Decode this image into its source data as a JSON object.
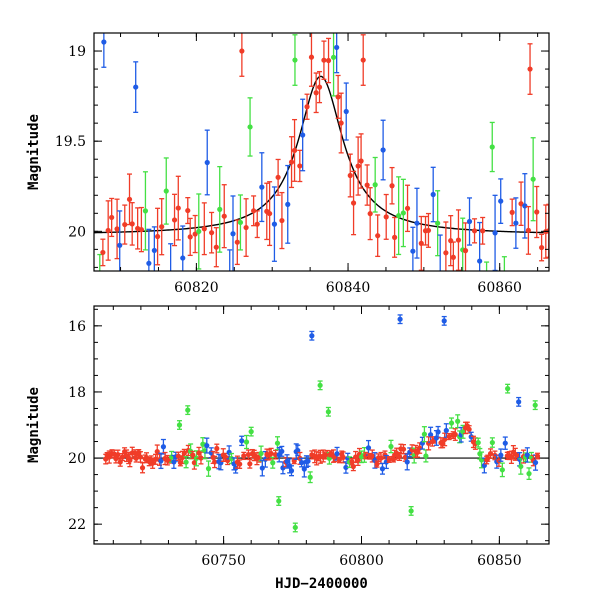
{
  "colors": {
    "blue": "#1f5ce6",
    "green": "#44e044",
    "red": "#f03c28",
    "model": "#000000"
  },
  "chart_data": [
    {
      "type": "scatter",
      "title": "",
      "xlabel": "",
      "ylabel": "Magnitude",
      "xlim": [
        60806.5,
        60866.5
      ],
      "ylim": [
        20.22,
        18.9
      ],
      "y_inverted": true,
      "xticks": [
        60820,
        60840,
        60860
      ],
      "xtick_labels": [
        "60820",
        "60840",
        "60860"
      ],
      "yticks": [
        19,
        19.5,
        20
      ],
      "ytick_labels": [
        "19",
        "19.5",
        "20"
      ],
      "model_curve": {
        "type": "lorentzian",
        "baseline": 20.02,
        "peak_x": 60836.4,
        "peak_y": 19.14,
        "half_width": 3.6
      },
      "grid": false,
      "legend": "none"
    },
    {
      "type": "scatter",
      "title": "",
      "xlabel": "HJD−2400000",
      "ylabel": "Magnitude",
      "xlim": [
        60703,
        60868
      ],
      "ylim": [
        22.6,
        15.4
      ],
      "y_inverted": true,
      "xticks": [
        60750,
        60800,
        60850
      ],
      "xtick_labels": [
        "60750",
        "60800",
        "60850"
      ],
      "yticks": [
        16,
        18,
        20,
        22
      ],
      "ytick_labels": [
        "16",
        "18",
        "20",
        "22"
      ],
      "baseline": 20.0,
      "grid": false,
      "legend": "none"
    }
  ]
}
